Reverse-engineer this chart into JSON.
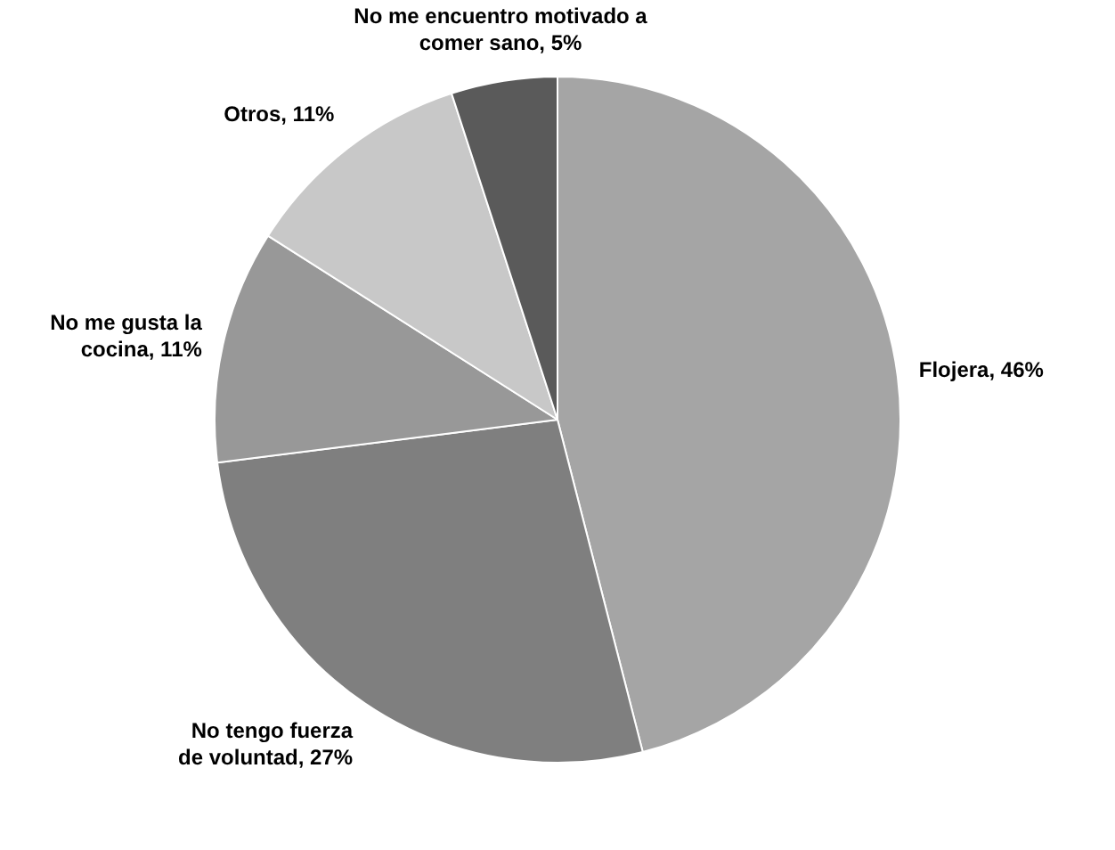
{
  "chart_data": {
    "type": "pie",
    "categories": [
      "Flojera",
      "No tengo fuerza de voluntad",
      "No me gusta la cocina",
      "Otros",
      "No me encuentro motivado a comer sano"
    ],
    "values": [
      46,
      27,
      11,
      11,
      5
    ],
    "value_labels": [
      "46%",
      "27%",
      "11%",
      "11%",
      "5%"
    ],
    "colors": [
      "#a5a5a5",
      "#7f7f7f",
      "#989898",
      "#c8c8c8",
      "#5a5a5a"
    ],
    "legend": false
  }
}
